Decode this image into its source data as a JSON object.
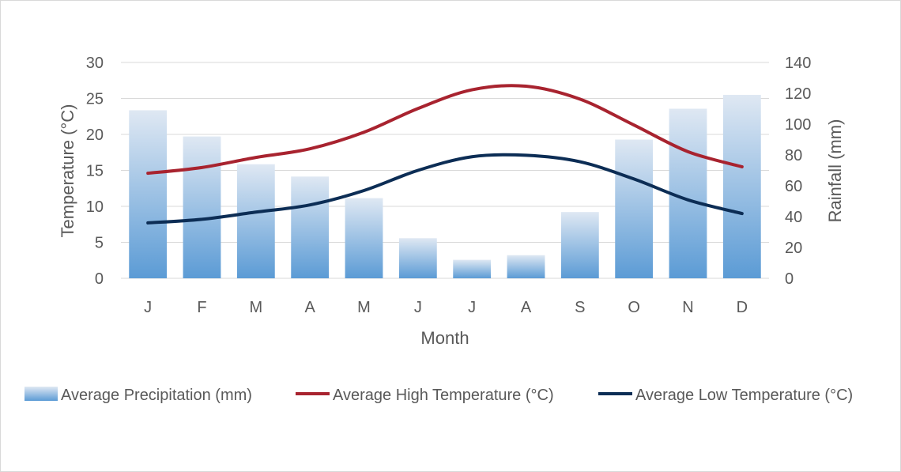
{
  "chart_data": {
    "type": "bar+line",
    "categories": [
      "J",
      "F",
      "M",
      "A",
      "M",
      "J",
      "J",
      "A",
      "S",
      "O",
      "N",
      "D"
    ],
    "xlabel": "Month",
    "ylabel_left": "Temperature (°C)",
    "ylabel_right": "Rainfall (mm)",
    "ylim_left": [
      0,
      30
    ],
    "yticks_left": [
      0,
      5,
      10,
      15,
      20,
      25,
      30
    ],
    "ylim_right": [
      0,
      140
    ],
    "yticks_right": [
      0,
      20,
      40,
      60,
      80,
      100,
      120,
      140
    ],
    "grid": true,
    "legend_position": "bottom",
    "series": [
      {
        "name": "Average Precipitation (mm)",
        "kind": "bar",
        "axis": "right",
        "color_top": "#dfe8f3",
        "color_bottom": "#5b9bd5",
        "values": [
          109,
          92,
          74,
          66,
          52,
          26,
          12,
          15,
          43,
          90,
          110,
          119
        ]
      },
      {
        "name": "Average High Temperature (°C)",
        "kind": "line",
        "axis": "left",
        "color": "#a8232f",
        "values": [
          14.6,
          15.4,
          16.8,
          18.0,
          20.3,
          23.6,
          26.2,
          26.7,
          24.9,
          21.3,
          17.6,
          15.5
        ]
      },
      {
        "name": "Average Low Temperature (°C)",
        "kind": "line",
        "axis": "left",
        "color": "#0c2d55",
        "values": [
          7.7,
          8.2,
          9.2,
          10.2,
          12.2,
          15.0,
          16.9,
          17.1,
          16.2,
          13.8,
          10.9,
          9.0
        ]
      }
    ]
  }
}
